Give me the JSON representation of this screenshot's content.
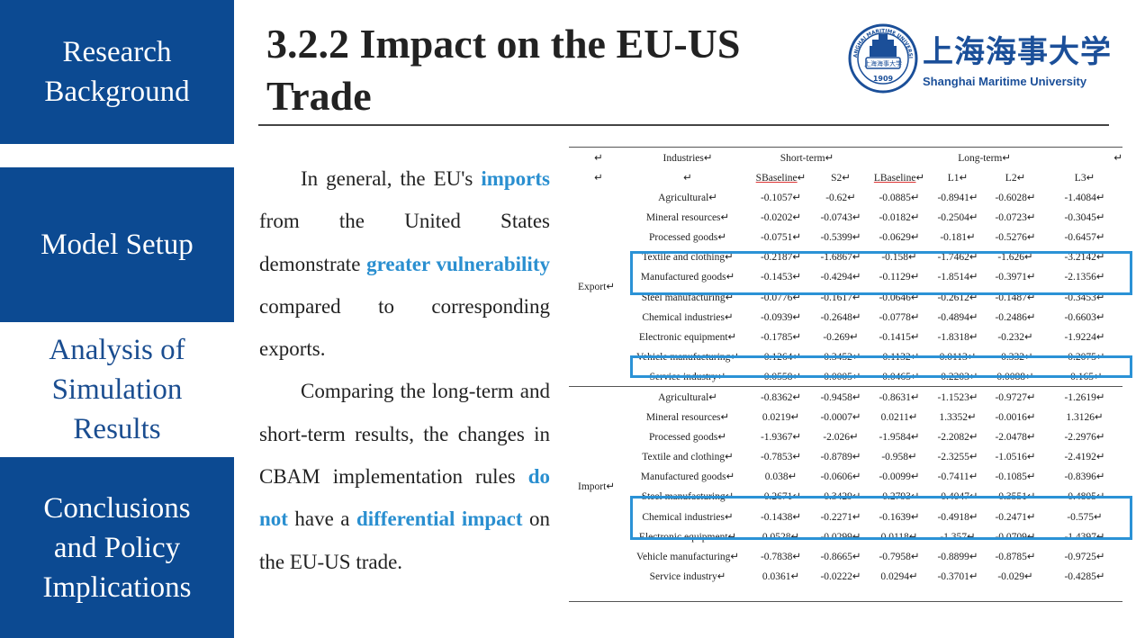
{
  "sidebar": {
    "items": [
      {
        "label_lines": [
          "Research",
          "Background"
        ],
        "active": false
      },
      {
        "label_lines": [
          "Model Setup"
        ],
        "active": false
      },
      {
        "label_lines": [
          "Analysis of",
          "Simulation",
          "Results"
        ],
        "active": true
      },
      {
        "label_lines": [
          "Conclusions",
          "and Policy",
          "Implications"
        ],
        "active": false
      }
    ]
  },
  "header": {
    "title": "3.2.2 Impact on the EU-US Trade",
    "logo": {
      "name_en": "Shanghai Maritime University",
      "name_cn": "上海海事大学",
      "seal_text": "SHANGHAI MARITIME UNIVERSITY",
      "seal_cn": "上海海事大学",
      "year": "1909"
    }
  },
  "body": {
    "para1": {
      "s1": "In general, the EU's ",
      "h1": "imports",
      "s2": " from the United States demonstrate ",
      "h2": "greater vulnerability",
      "s3": " compared to corresponding exports."
    },
    "para2": {
      "s1": "Comparing the long-term and short-term results, the changes in CBAM implementation rules ",
      "h1": "do not",
      "s2": " have a ",
      "h2": "differential impact",
      "s3": " on the EU-US trade."
    }
  },
  "table": {
    "mark": "↵",
    "header1": {
      "industries": "Industries",
      "short_term": "Short-term",
      "long_term": "Long-term"
    },
    "header2": [
      "SBaseline",
      "S2",
      "LBaseline",
      "L1",
      "L2",
      "L3"
    ],
    "groups": [
      {
        "label": "Export",
        "rows": [
          {
            "industry": "Agricultural",
            "values": [
              "-0.1057",
              "-0.62",
              "-0.0885",
              "-0.8941",
              "-0.6028",
              "-1.4084"
            ]
          },
          {
            "industry": "Mineral resources",
            "values": [
              "-0.0202",
              "-0.0743",
              "-0.0182",
              "-0.2504",
              "-0.0723",
              "-0.3045"
            ]
          },
          {
            "industry": "Processed goods",
            "values": [
              "-0.0751",
              "-0.5399",
              "-0.0629",
              "-0.181",
              "-0.5276",
              "-0.6457"
            ]
          },
          {
            "industry": "Textile and clothing",
            "values": [
              "-0.2187",
              "-1.6867",
              "-0.158",
              "-1.7462",
              "-1.626",
              "-3.2142"
            ]
          },
          {
            "industry": "Manufactured goods",
            "values": [
              "-0.1453",
              "-0.4294",
              "-0.1129",
              "-1.8514",
              "-0.3971",
              "-2.1356"
            ]
          },
          {
            "industry": "Steel manufacturing",
            "values": [
              "-0.0776",
              "-0.1617",
              "-0.0646",
              "-0.2612",
              "-0.1487",
              "-0.3453"
            ]
          },
          {
            "industry": "Chemical industries",
            "values": [
              "-0.0939",
              "-0.2648",
              "-0.0778",
              "-0.4894",
              "-0.2486",
              "-0.6603"
            ]
          },
          {
            "industry": "Electronic equipment",
            "values": [
              "-0.1785",
              "-0.269",
              "-0.1415",
              "-1.8318",
              "-0.232",
              "-1.9224"
            ]
          },
          {
            "industry": "Vehicle manufacturing",
            "values": [
              "-0.1264",
              "-0.3452",
              "-0.1132",
              "0.0113",
              "-0.332",
              "-0.2075"
            ]
          },
          {
            "industry": "Service industry",
            "values": [
              "-0.0558",
              "-0.0005",
              "-0.0465",
              "-0.2203",
              "0.0088",
              "-0.165"
            ]
          }
        ]
      },
      {
        "label": "Import",
        "rows": [
          {
            "industry": "Agricultural",
            "values": [
              "-0.8362",
              "-0.9458",
              "-0.8631",
              "-1.1523",
              "-0.9727",
              "-1.2619"
            ]
          },
          {
            "industry": "Mineral resources",
            "values": [
              "0.0219",
              "-0.0007",
              "0.0211",
              "1.3352",
              "-0.0016",
              "1.3126"
            ]
          },
          {
            "industry": "Processed goods",
            "values": [
              "-1.9367",
              "-2.026",
              "-1.9584",
              "-2.2082",
              "-2.0478",
              "-2.2976"
            ]
          },
          {
            "industry": "Textile and clothing",
            "values": [
              "-0.7853",
              "-0.8789",
              "-0.958",
              "-2.3255",
              "-1.0516",
              "-2.4192"
            ]
          },
          {
            "industry": "Manufactured goods",
            "values": [
              "0.038",
              "-0.0606",
              "-0.0099",
              "-0.7411",
              "-0.1085",
              "-0.8396"
            ]
          },
          {
            "industry": "Steel manufacturing",
            "values": [
              "-0.2671",
              "-0.3429",
              "-0.2793",
              "-0.4047",
              "-0.3551",
              "-0.4805"
            ]
          },
          {
            "industry": "Chemical industries",
            "values": [
              "-0.1438",
              "-0.2271",
              "-0.1639",
              "-0.4918",
              "-0.2471",
              "-0.575"
            ]
          },
          {
            "industry": "Electronic equipment",
            "values": [
              "0.0528",
              "-0.0299",
              "0.0118",
              "-1.357",
              "-0.0709",
              "-1.4397"
            ]
          },
          {
            "industry": "Vehicle manufacturing",
            "values": [
              "-0.7838",
              "-0.8665",
              "-0.7958",
              "-0.8899",
              "-0.8785",
              "-0.9725"
            ]
          },
          {
            "industry": "Service industry",
            "values": [
              "0.0361",
              "-0.0222",
              "0.0294",
              "-0.3701",
              "-0.029",
              "-0.4285"
            ]
          }
        ]
      }
    ]
  },
  "colors": {
    "nav_bg": "#0c4a92",
    "highlight": "#2a8fd0",
    "box": "#2b92d6",
    "brand": "#1b4f99"
  }
}
